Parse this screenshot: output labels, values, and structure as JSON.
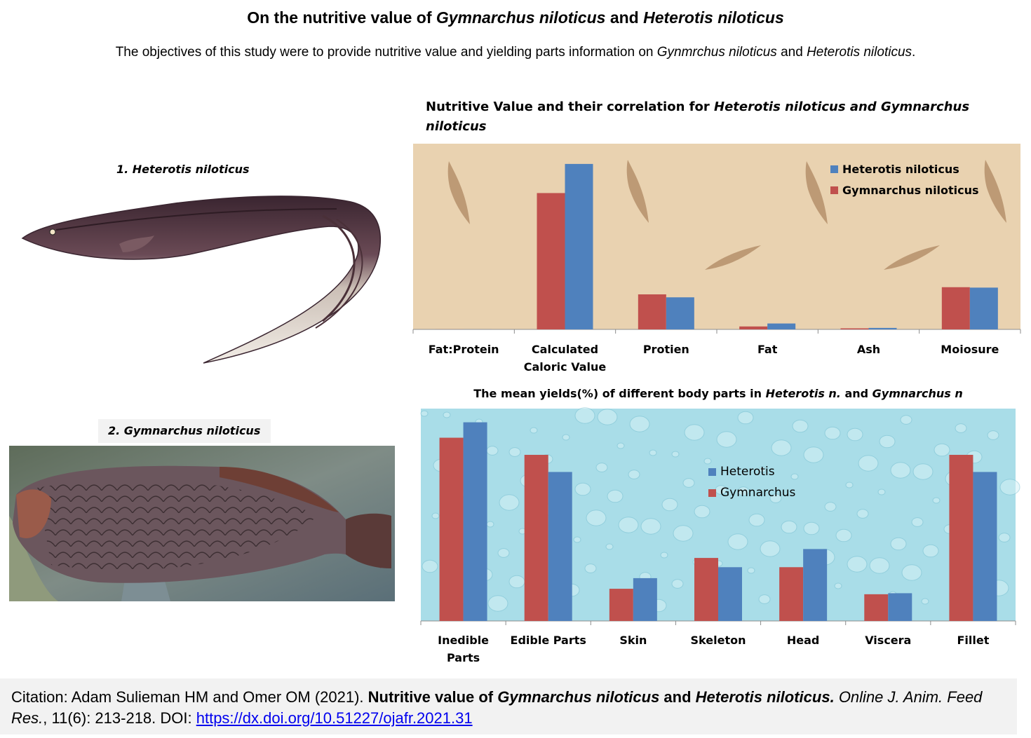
{
  "header": {
    "title_prefix": "On the nutritive value of ",
    "title_species1": "Gymnarchus niloticus",
    "title_and": " and ",
    "title_species2": "Heterotis niloticus",
    "subtitle_prefix": "The objectives of this study were to provide nutritive value and yielding parts information on ",
    "subtitle_species1": "Gynmrchus niloticus",
    "subtitle_and": " and ",
    "subtitle_species2": "Heterotis niloticus",
    "subtitle_end": "."
  },
  "figures": {
    "label1": "1. Heterotis niloticus",
    "label2": "2.  Gymnarchus niloticus"
  },
  "colors": {
    "heterotis": "#4f81bd",
    "gymnarchus": "#c0504d",
    "chart1_bg": "#e9d2b0",
    "chart2_bg": "#a9dde8"
  },
  "chart1_title": {
    "prefix": "Nutritive Value  and their correlation for ",
    "species": "Heterotis niloticus and Gymnarchus niloticus"
  },
  "chart2_title": {
    "prefix": "The mean yields(%) of different body parts in ",
    "species1": "Heterotis n.",
    "and": " and ",
    "species2": "Gymnarchus n"
  },
  "chart_data": [
    {
      "type": "bar",
      "title": "Nutritive Value  and their correlation for Heterotis niloticus and Gymnarchus niloticus",
      "categories": [
        "Fat:Protein",
        "Calculated Caloric Value",
        "Protien",
        "Fat",
        "Ash",
        "Moiosure"
      ],
      "series": [
        {
          "name": "Gymnarchus niloticus",
          "values": [
            0.1,
            323,
            83,
            7,
            2.5,
            100
          ]
        },
        {
          "name": "Heterotis niloticus",
          "values": [
            0.1,
            392,
            76,
            14,
            3.5,
            99
          ]
        }
      ],
      "ylim": [
        0,
        440
      ],
      "legend": "top-right",
      "grid": false
    },
    {
      "type": "bar",
      "title": "The mean yields(%) of different body parts in Heterotis n. and Gymnarchus n",
      "categories": [
        "Inedible Parts",
        "Edible Parts",
        "Skin",
        "Skeleton",
        "Head",
        "Viscera",
        "Fillet"
      ],
      "series": [
        {
          "name": "Gymnarchus",
          "values": [
            53.5,
            48.5,
            9.4,
            18.4,
            15.7,
            7.8,
            48.5
          ]
        },
        {
          "name": "Heterotis",
          "values": [
            58,
            43.5,
            12.5,
            15.7,
            21,
            8.1,
            43.5
          ]
        }
      ],
      "ylim": [
        0,
        62
      ],
      "legend": "center",
      "grid": false
    }
  ],
  "citation": {
    "prefix": "Citation: Adam Sulieman HM and Omer OM (2021). ",
    "title_a": "Nutritive value of ",
    "title_species1": "Gymnarchus niloticus",
    "title_and": " and ",
    "title_species2": "Heterotis niloticus.",
    "journal": " Online J. Anim. Feed Res.",
    "volume": ", 11(6): 213-218. DOI: ",
    "doi": "https://dx.doi.org/10.51227/ojafr.2021.31"
  }
}
